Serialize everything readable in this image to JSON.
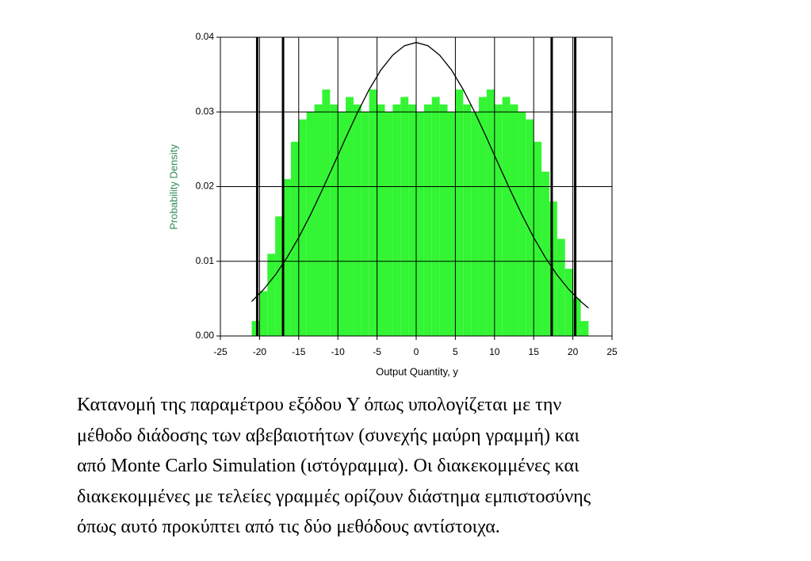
{
  "chart_data": {
    "type": "histogram",
    "xlabel": "Output Quantity, y",
    "ylabel": "Probability Density",
    "xlim": [
      -25,
      25
    ],
    "ylim": [
      0,
      0.04
    ],
    "xticks": [
      -25,
      -20,
      -15,
      -10,
      -5,
      0,
      5,
      10,
      15,
      20,
      25
    ],
    "yticks": [
      {
        "value": 0,
        "label": "0.00"
      },
      0.01,
      0.02,
      0.03,
      0.04
    ],
    "grid": true,
    "color": "#33f533",
    "bins": [
      -21,
      -20,
      -19,
      -18,
      -17,
      -16,
      -15,
      -14,
      -13,
      -12,
      -11,
      -10,
      -9,
      -8,
      -7,
      -6,
      -5,
      -4,
      -3,
      -2,
      -1,
      0,
      1,
      2,
      3,
      4,
      5,
      6,
      7,
      8,
      9,
      10,
      11,
      12,
      13,
      14,
      15,
      16,
      17,
      18,
      19,
      20,
      21,
      22
    ],
    "counts": [
      0.002,
      0.006,
      0.011,
      0.016,
      0.021,
      0.026,
      0.029,
      0.03,
      0.031,
      0.033,
      0.031,
      0.03,
      0.032,
      0.031,
      0.03,
      0.033,
      0.031,
      0.03,
      0.031,
      0.032,
      0.031,
      0.03,
      0.031,
      0.032,
      0.031,
      0.03,
      0.033,
      0.031,
      0.03,
      0.032,
      0.033,
      0.031,
      0.032,
      0.031,
      0.03,
      0.029,
      0.026,
      0.022,
      0.018,
      0.013,
      0.009,
      0.005,
      0.002
    ],
    "curve": {
      "color": "#000000",
      "x": [
        -21,
        -19.5,
        -18,
        -16.5,
        -15,
        -13.5,
        -12,
        -10.5,
        -9,
        -7.5,
        -6,
        -4.5,
        -3,
        -1.5,
        0,
        1.5,
        3,
        4.5,
        6,
        7.5,
        9,
        10.5,
        12,
        13.5,
        15,
        16.5,
        18,
        19.5,
        21,
        22
      ],
      "values": [
        0.00462,
        0.00621,
        0.00816,
        0.01048,
        0.01319,
        0.01622,
        0.01953,
        0.02301,
        0.02653,
        0.02991,
        0.033,
        0.03562,
        0.0376,
        0.03887,
        0.0393,
        0.03887,
        0.0376,
        0.03562,
        0.033,
        0.02991,
        0.02653,
        0.02301,
        0.01953,
        0.01622,
        0.01319,
        0.01048,
        0.00816,
        0.00621,
        0.00462,
        0.00375
      ]
    },
    "interval_lines": [
      -20.3,
      -17.0,
      17.3,
      20.3
    ]
  },
  "caption_lines": [
    "Κατανομή της παραμέτρου εξόδου Y όπως υπολογίζεται με την",
    "μέθοδο διάδοσης των αβεβαιοτήτων (συνεχής μαύρη γραμμή) και",
    "από Monte Carlo Simulation (ιστόγραμμα). Οι διακεκομμένες και",
    "διακεκομμένες με τελείες γραμμές ορίζουν διάστημα εμπιστοσύνης",
    "όπως αυτό προκύπτει από τις δύο μεθόδους αντίστοιχα."
  ]
}
